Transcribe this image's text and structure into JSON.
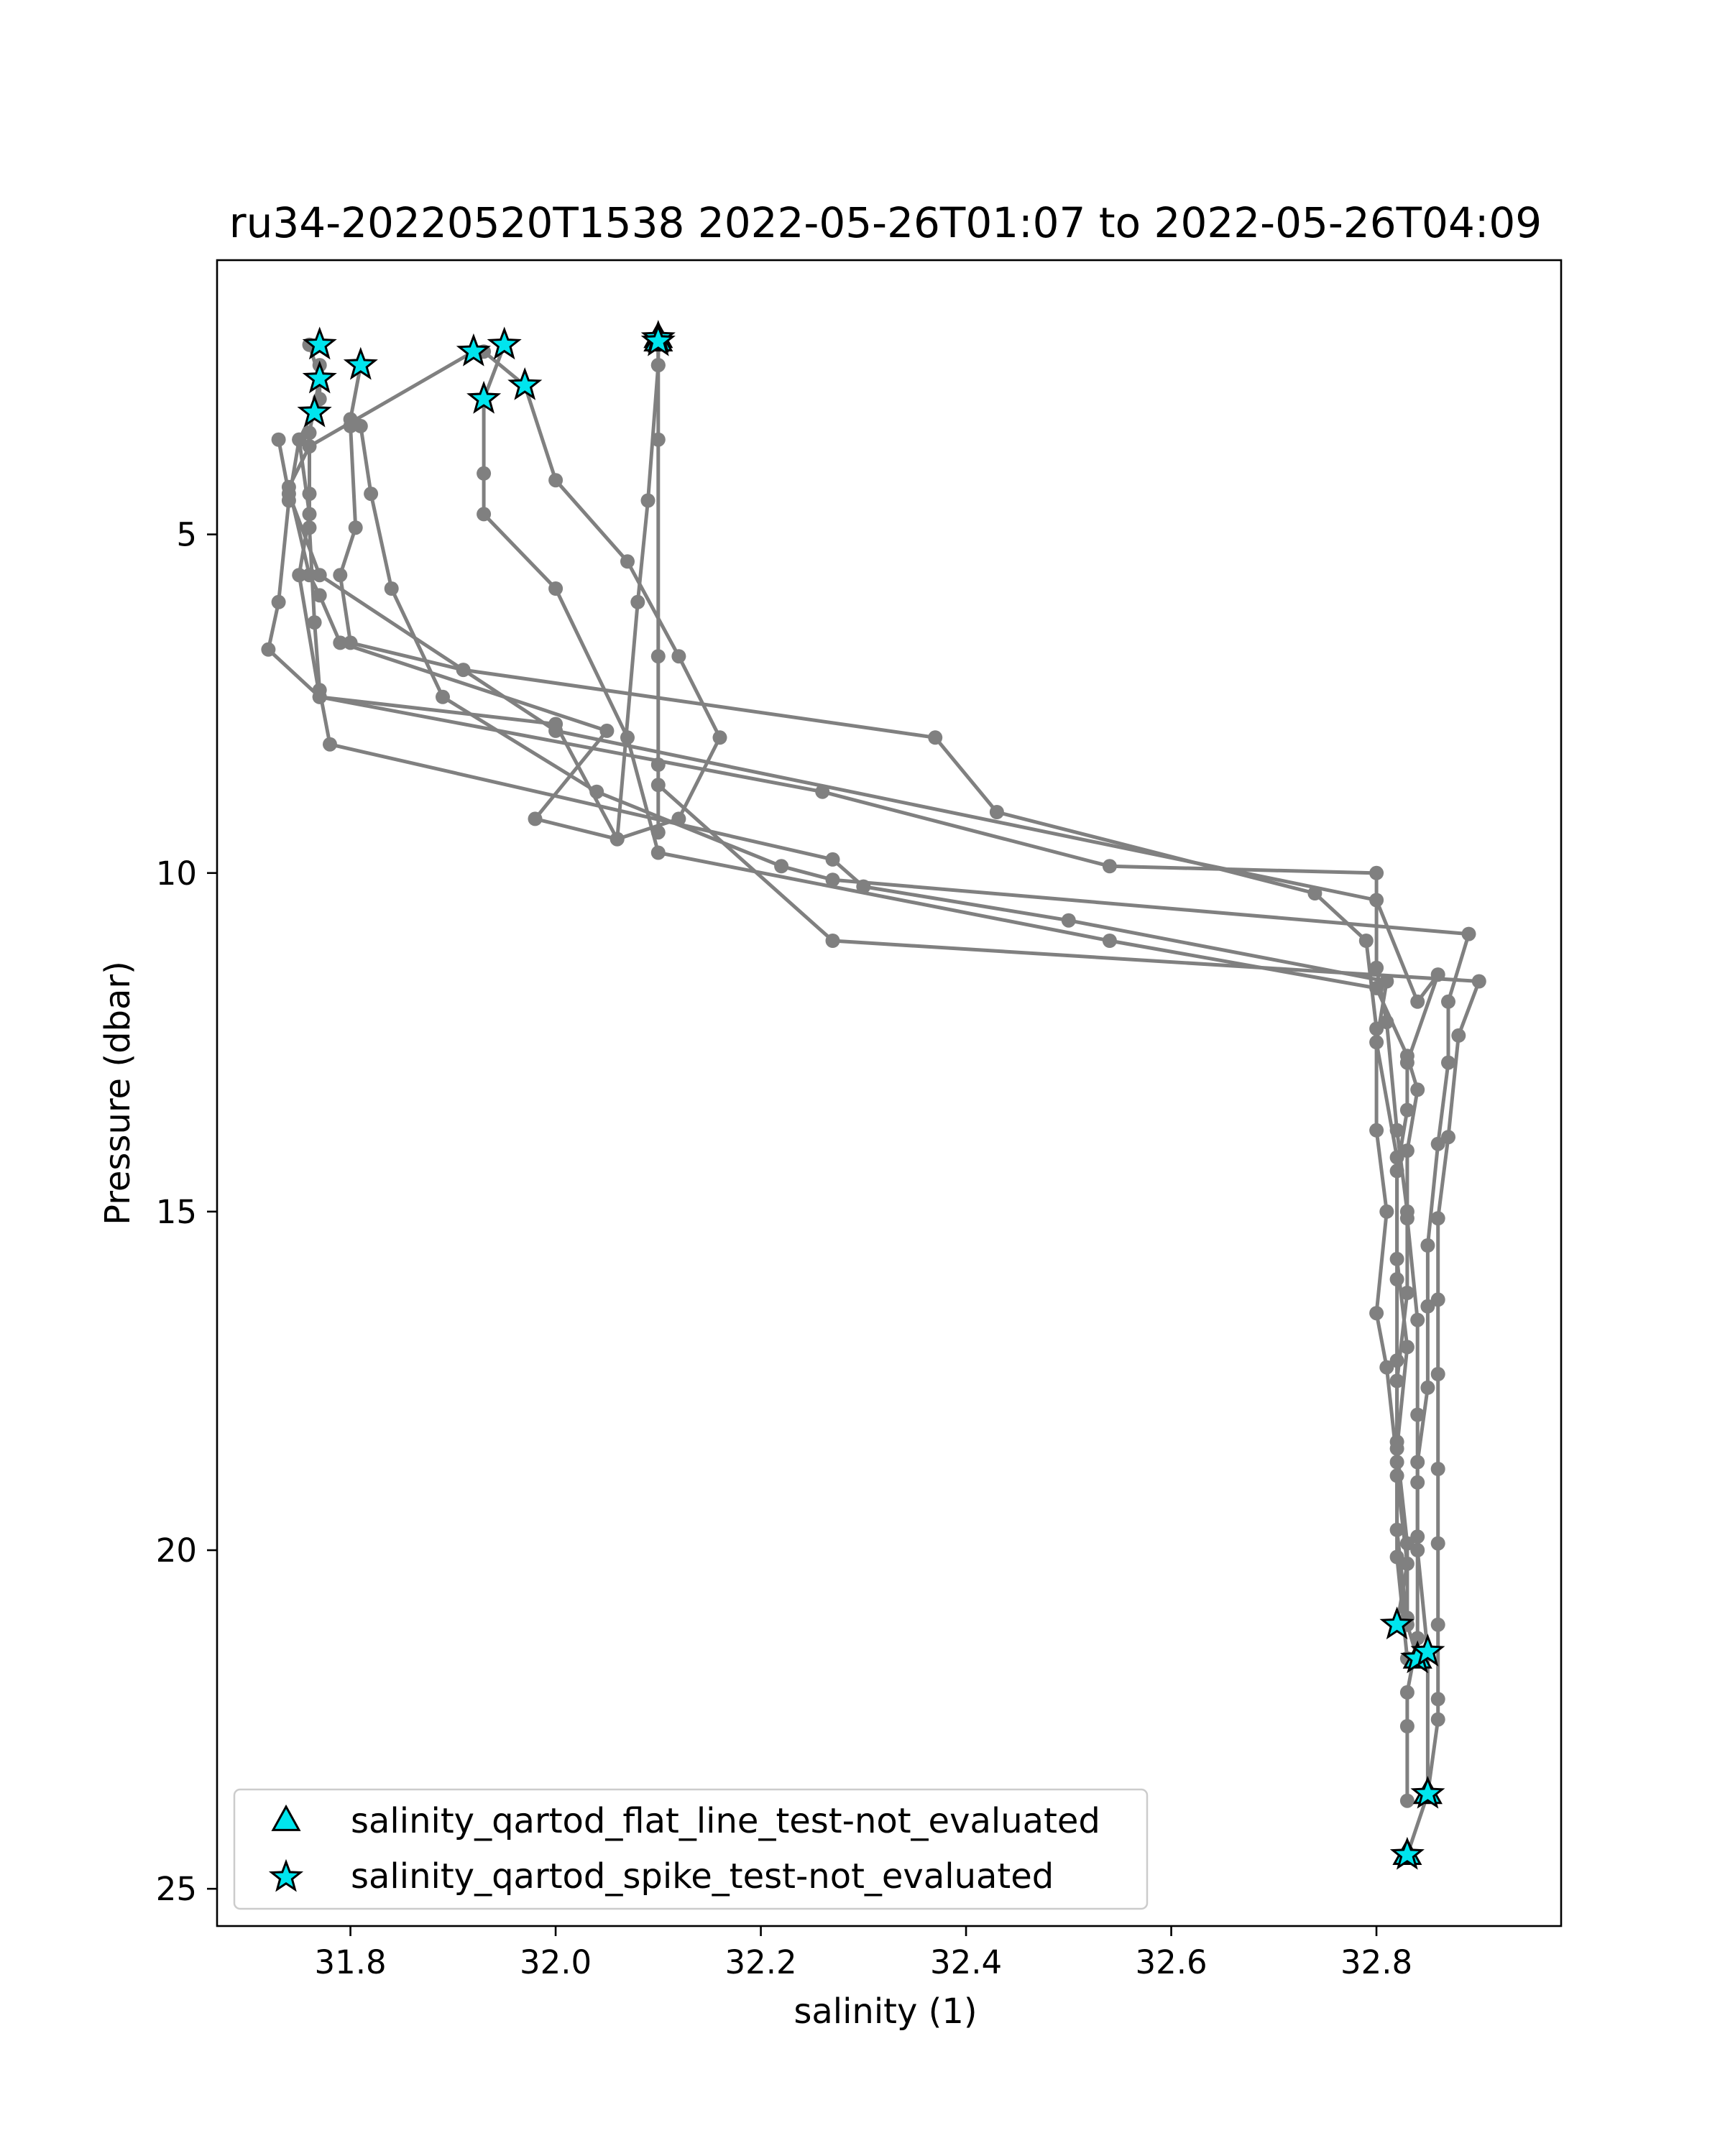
{
  "chart_data": {
    "type": "scatter",
    "title": "ru34-20220520T1538 2022-05-26T01:07 to 2022-05-26T04:09",
    "xlabel": "salinity (1)",
    "ylabel": "Pressure (dbar)",
    "xlim": [
      31.67,
      32.98
    ],
    "ylim": [
      25.55,
      0.95
    ],
    "y_inverted": true,
    "xticks": [
      31.8,
      32.0,
      32.2,
      32.4,
      32.6,
      32.8
    ],
    "xtick_labels": [
      "31.8",
      "32.0",
      "32.2",
      "32.4",
      "32.6",
      "32.8"
    ],
    "yticks": [
      5,
      10,
      15,
      20,
      25
    ],
    "ytick_labels": [
      "5",
      "10",
      "15",
      "20",
      "25"
    ],
    "grid": false,
    "legend_placement": "lower left",
    "colors": {
      "profile_line": "#808080",
      "flag_fill": "#00e5ee",
      "flag_edge": "#000000"
    },
    "series": [
      {
        "values": [
          [
            31.76,
            2.2
          ],
          [
            31.77,
            2.7
          ],
          [
            31.76,
            3.5
          ],
          [
            31.76,
            4.4
          ],
          [
            31.76,
            4.9
          ],
          [
            31.765,
            6.3
          ],
          [
            31.77,
            7.3
          ],
          [
            31.78,
            8.1
          ],
          [
            32.27,
            9.8
          ],
          [
            32.3,
            10.2
          ],
          [
            32.5,
            10.7
          ],
          [
            32.81,
            11.6
          ],
          [
            32.8,
            12.5
          ],
          [
            32.82,
            14.2
          ],
          [
            32.82,
            15.7
          ],
          [
            32.83,
            17.0
          ],
          [
            32.82,
            18.5
          ],
          [
            32.83,
            19.9
          ],
          [
            32.83,
            21.0
          ]
        ]
      },
      {
        "values": [
          [
            31.81,
            2.5
          ],
          [
            31.8,
            3.3
          ],
          [
            31.8,
            3.4
          ],
          [
            31.805,
            4.9
          ],
          [
            31.79,
            5.6
          ],
          [
            31.8,
            6.6
          ],
          [
            31.91,
            7.0
          ],
          [
            32.37,
            8.0
          ],
          [
            32.43,
            9.1
          ],
          [
            32.74,
            10.3
          ],
          [
            32.79,
            11.0
          ],
          [
            32.8,
            12.3
          ],
          [
            32.8,
            13.8
          ],
          [
            32.81,
            15.0
          ],
          [
            32.8,
            16.5
          ],
          [
            32.81,
            17.3
          ],
          [
            32.82,
            18.7
          ],
          [
            32.82,
            20.1
          ],
          [
            32.83,
            21.6
          ]
        ]
      },
      {
        "values": [
          [
            31.77,
            2.5
          ],
          [
            31.77,
            3.0
          ],
          [
            31.75,
            3.6
          ],
          [
            31.74,
            4.5
          ],
          [
            31.73,
            6.0
          ],
          [
            31.72,
            6.7
          ],
          [
            31.77,
            7.4
          ],
          [
            32.0,
            7.8
          ],
          [
            32.06,
            9.5
          ],
          [
            32.12,
            9.2
          ],
          [
            32.16,
            8.0
          ],
          [
            32.12,
            6.8
          ],
          [
            32.07,
            5.4
          ],
          [
            32.0,
            4.2
          ],
          [
            31.97,
            2.8
          ],
          [
            31.93,
            2.3
          ]
        ]
      },
      {
        "values": [
          [
            31.95,
            2.2
          ],
          [
            31.93,
            3.0
          ],
          [
            31.93,
            4.1
          ],
          [
            31.93,
            4.7
          ],
          [
            32.0,
            5.8
          ],
          [
            32.07,
            8.0
          ],
          [
            32.1,
            9.7
          ],
          [
            32.54,
            11.0
          ],
          [
            32.8,
            11.7
          ],
          [
            32.83,
            12.7
          ],
          [
            32.84,
            13.2
          ],
          [
            32.83,
            14.1
          ],
          [
            32.83,
            15.1
          ],
          [
            32.84,
            16.6
          ],
          [
            32.84,
            18.0
          ],
          [
            32.84,
            19.0
          ],
          [
            32.84,
            20.0
          ],
          [
            32.85,
            21.5
          ],
          [
            32.85,
            23.6
          ]
        ]
      },
      {
        "values": [
          [
            32.1,
            2.2
          ],
          [
            32.1,
            2.5
          ],
          [
            32.09,
            4.5
          ],
          [
            32.08,
            6.0
          ],
          [
            32.06,
            9.5
          ],
          [
            31.98,
            9.2
          ],
          [
            32.05,
            7.9
          ],
          [
            31.79,
            6.6
          ],
          [
            31.77,
            5.9
          ],
          [
            31.76,
            5.6
          ],
          [
            31.74,
            4.3
          ],
          [
            31.76,
            3.7
          ],
          [
            31.92,
            2.3
          ]
        ]
      },
      {
        "values": [
          [
            32.1,
            2.1
          ],
          [
            32.1,
            2.5
          ],
          [
            32.1,
            3.6
          ],
          [
            32.1,
            6.8
          ],
          [
            32.1,
            8.4
          ],
          [
            32.1,
            9.4
          ],
          [
            32.1,
            8.7
          ],
          [
            32.27,
            11.0
          ],
          [
            32.9,
            11.6
          ],
          [
            32.88,
            12.4
          ],
          [
            32.87,
            13.9
          ],
          [
            32.86,
            15.1
          ],
          [
            32.86,
            16.3
          ],
          [
            32.86,
            17.4
          ],
          [
            32.86,
            18.8
          ],
          [
            32.86,
            19.9
          ],
          [
            32.86,
            21.1
          ],
          [
            32.86,
            22.2
          ],
          [
            32.86,
            22.5
          ],
          [
            32.85,
            23.6
          ],
          [
            32.83,
            24.5
          ]
        ]
      },
      {
        "values": [
          [
            31.81,
            3.4
          ],
          [
            31.82,
            4.4
          ],
          [
            31.84,
            5.8
          ],
          [
            31.89,
            7.4
          ],
          [
            32.04,
            8.8
          ],
          [
            32.22,
            9.9
          ],
          [
            32.27,
            10.1
          ],
          [
            32.89,
            10.9
          ],
          [
            32.87,
            11.9
          ],
          [
            32.87,
            12.8
          ],
          [
            32.86,
            14.0
          ],
          [
            32.85,
            15.5
          ],
          [
            32.85,
            16.4
          ],
          [
            32.85,
            17.6
          ],
          [
            32.84,
            18.7
          ],
          [
            32.84,
            19.8
          ],
          [
            32.84,
            21.3
          ],
          [
            32.83,
            22.1
          ],
          [
            32.83,
            22.6
          ],
          [
            32.83,
            23.7
          ]
        ]
      },
      {
        "values": [
          [
            31.75,
            3.6
          ],
          [
            31.76,
            4.7
          ],
          [
            31.75,
            5.6
          ],
          [
            31.77,
            7.4
          ],
          [
            32.26,
            8.8
          ],
          [
            32.54,
            9.9
          ],
          [
            32.8,
            10.0
          ],
          [
            32.8,
            11.4
          ],
          [
            32.81,
            12.2
          ],
          [
            32.82,
            13.8
          ],
          [
            32.83,
            15.0
          ],
          [
            32.83,
            16.2
          ],
          [
            32.82,
            17.5
          ],
          [
            32.82,
            18.9
          ],
          [
            32.83,
            20.2
          ],
          [
            32.82,
            21.1
          ]
        ]
      },
      {
        "values": [
          [
            31.73,
            3.6
          ],
          [
            31.74,
            4.4
          ],
          [
            31.77,
            5.6
          ],
          [
            32.0,
            7.9
          ],
          [
            32.8,
            10.4
          ],
          [
            32.84,
            11.9
          ],
          [
            32.86,
            11.5
          ],
          [
            32.83,
            12.8
          ],
          [
            32.83,
            13.5
          ],
          [
            32.82,
            14.4
          ],
          [
            32.82,
            16.0
          ],
          [
            32.82,
            17.2
          ],
          [
            32.82,
            18.4
          ],
          [
            32.82,
            19.7
          ],
          [
            32.83,
            21.1
          ],
          [
            32.84,
            21.6
          ]
        ]
      }
    ],
    "flags": {
      "spike_test_not_evaluated": [
        [
          31.77,
          2.2
        ],
        [
          31.77,
          2.7
        ],
        [
          31.765,
          3.2
        ],
        [
          31.81,
          2.5
        ],
        [
          31.92,
          2.3
        ],
        [
          31.95,
          2.2
        ],
        [
          31.93,
          3.0
        ],
        [
          31.97,
          2.8
        ],
        [
          32.1,
          2.1
        ],
        [
          32.1,
          2.15
        ],
        [
          32.82,
          21.1
        ],
        [
          32.84,
          21.6
        ],
        [
          32.85,
          21.5
        ],
        [
          32.85,
          23.6
        ],
        [
          32.83,
          24.5
        ]
      ],
      "flat_line_test_not_evaluated": [
        [
          32.1,
          2.1
        ],
        [
          32.1,
          2.15
        ],
        [
          32.84,
          21.6
        ],
        [
          32.85,
          23.6
        ],
        [
          32.83,
          24.5
        ]
      ]
    },
    "legend": [
      {
        "marker": "triangle",
        "label": "salinity_qartod_flat_line_test-not_evaluated"
      },
      {
        "marker": "star",
        "label": "salinity_qartod_spike_test-not_evaluated"
      }
    ]
  }
}
